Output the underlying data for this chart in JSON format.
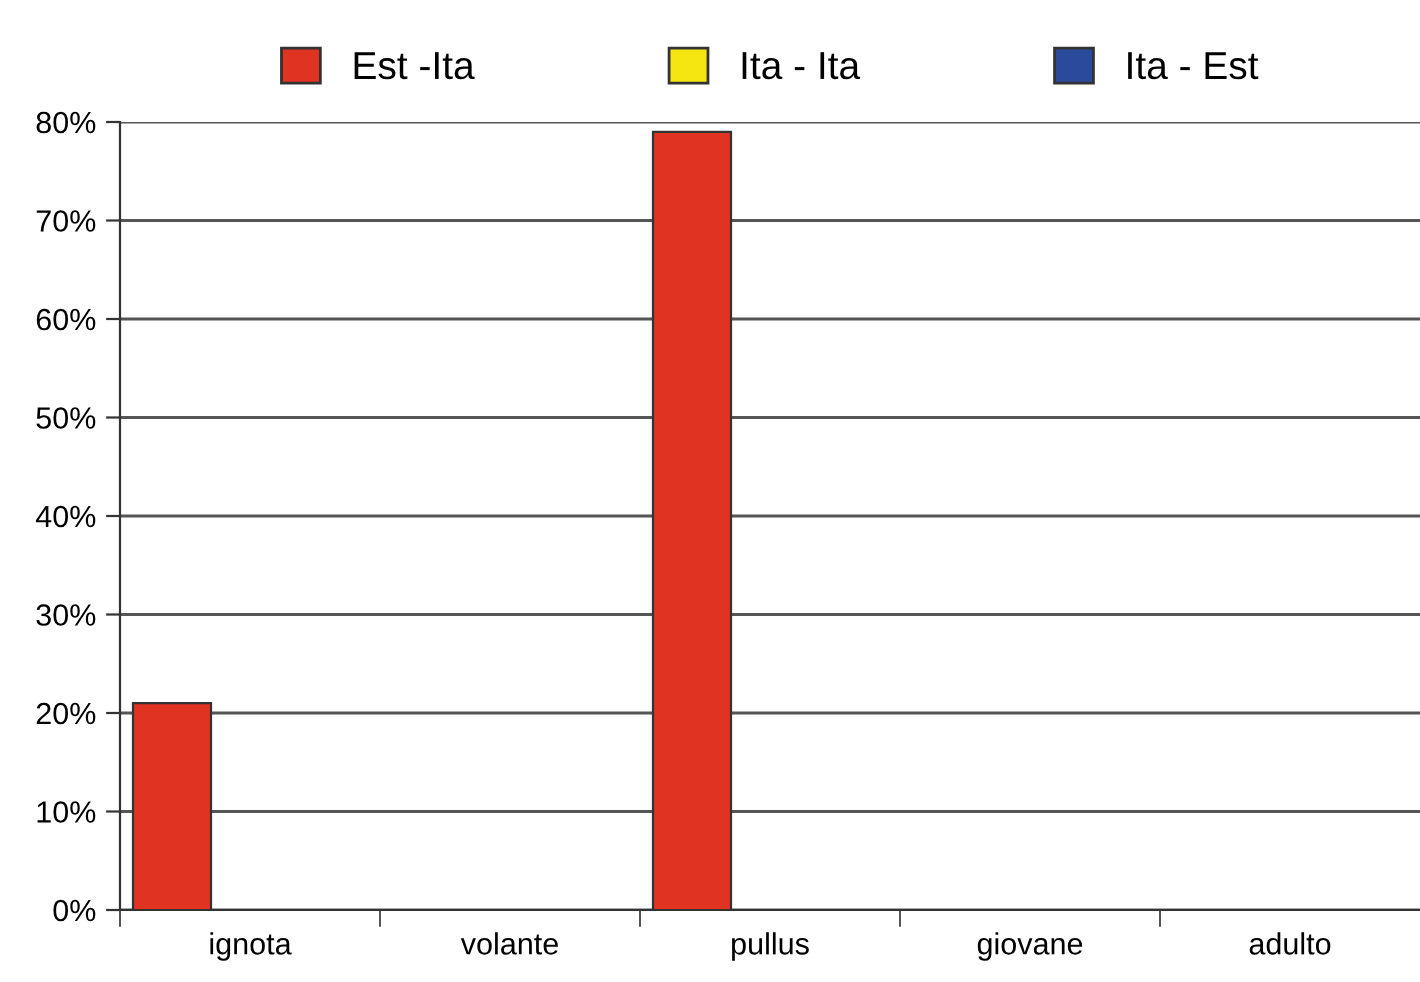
{
  "chart_data": {
    "type": "bar",
    "categories": [
      "ignota",
      "volante",
      "pullus",
      "giovane",
      "adulto"
    ],
    "series": [
      {
        "name": "Est -Ita",
        "color": "#e03322",
        "values": [
          21,
          null,
          79,
          null,
          null
        ]
      },
      {
        "name": "Ita - Ita",
        "color": "#f5e612",
        "values": [
          null,
          null,
          null,
          null,
          null
        ]
      },
      {
        "name": "Ita - Est",
        "color": "#2a4a9c",
        "values": [
          null,
          null,
          null,
          null,
          null
        ]
      }
    ],
    "ylim": [
      0,
      80
    ],
    "yticks": [
      {
        "value": 0,
        "label": "0%"
      },
      {
        "value": 10,
        "label": "10%"
      },
      {
        "value": 20,
        "label": "20%"
      },
      {
        "value": 30,
        "label": "30%"
      },
      {
        "value": 40,
        "label": "40%"
      },
      {
        "value": 50,
        "label": "50%"
      },
      {
        "value": 60,
        "label": "60%"
      },
      {
        "value": 70,
        "label": "70%"
      },
      {
        "value": 80,
        "label": "80%"
      }
    ],
    "grid": "y",
    "legend": "top"
  }
}
